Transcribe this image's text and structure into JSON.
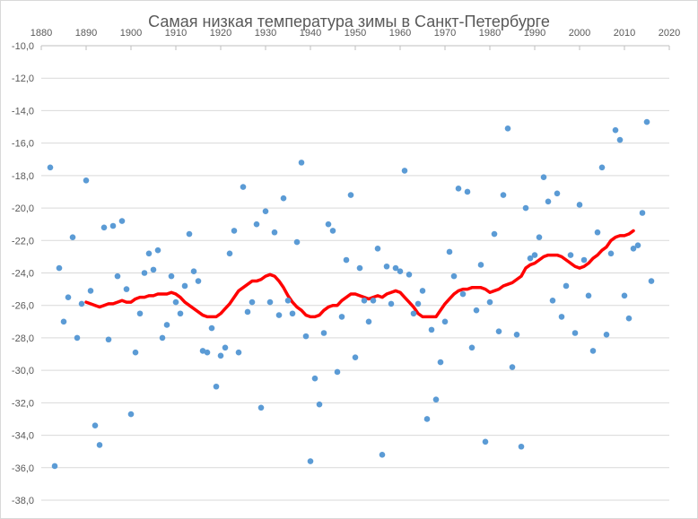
{
  "chart_data": {
    "type": "scatter",
    "title": "Самая низкая температура зимы в Санкт-Петербурге",
    "xlabel": "",
    "ylabel": "",
    "xlim": [
      1880,
      2020
    ],
    "ylim": [
      -38,
      -10
    ],
    "x_ticks": [
      1880,
      1890,
      1900,
      1910,
      1920,
      1930,
      1940,
      1950,
      1960,
      1970,
      1980,
      1990,
      2000,
      2010,
      2020
    ],
    "y_ticks": [
      -10,
      -12,
      -14,
      -16,
      -18,
      -20,
      -22,
      -24,
      -26,
      -28,
      -30,
      -32,
      -34,
      -36,
      -38
    ],
    "y_tick_labels": [
      "-10,0",
      "-12,0",
      "-14,0",
      "-16,0",
      "-18,0",
      "-20,0",
      "-22,0",
      "-24,0",
      "-26,0",
      "-28,0",
      "-30,0",
      "-32,0",
      "-34,0",
      "-36,0",
      "-38,0"
    ],
    "grid": "horizontal",
    "x_axis_position": "top",
    "colors": {
      "points": "#5b9bd5",
      "trend": "#ff0000",
      "grid": "#d9d9d9",
      "text": "#595959"
    },
    "series": [
      {
        "type": "scatter",
        "points": [
          [
            1882,
            -17.5
          ],
          [
            1883,
            -35.9
          ],
          [
            1884,
            -23.7
          ],
          [
            1885,
            -27.0
          ],
          [
            1886,
            -25.5
          ],
          [
            1887,
            -21.8
          ],
          [
            1888,
            -28.0
          ],
          [
            1889,
            -25.9
          ],
          [
            1890,
            -18.3
          ],
          [
            1891,
            -25.1
          ],
          [
            1892,
            -33.4
          ],
          [
            1893,
            -34.6
          ],
          [
            1894,
            -21.2
          ],
          [
            1895,
            -28.1
          ],
          [
            1896,
            -21.1
          ],
          [
            1897,
            -24.2
          ],
          [
            1898,
            -20.8
          ],
          [
            1899,
            -25.0
          ],
          [
            1900,
            -32.7
          ],
          [
            1901,
            -28.9
          ],
          [
            1902,
            -26.5
          ],
          [
            1903,
            -24.0
          ],
          [
            1904,
            -22.8
          ],
          [
            1905,
            -23.8
          ],
          [
            1906,
            -22.6
          ],
          [
            1907,
            -28.0
          ],
          [
            1908,
            -27.2
          ],
          [
            1909,
            -24.2
          ],
          [
            1910,
            -25.8
          ],
          [
            1911,
            -26.5
          ],
          [
            1912,
            -24.8
          ],
          [
            1913,
            -21.6
          ],
          [
            1914,
            -23.9
          ],
          [
            1915,
            -24.5
          ],
          [
            1916,
            -28.8
          ],
          [
            1917,
            -28.9
          ],
          [
            1918,
            -27.4
          ],
          [
            1919,
            -31.0
          ],
          [
            1920,
            -29.1
          ],
          [
            1921,
            -28.6
          ],
          [
            1922,
            -22.8
          ],
          [
            1923,
            -21.4
          ],
          [
            1924,
            -28.9
          ],
          [
            1925,
            -18.7
          ],
          [
            1926,
            -26.4
          ],
          [
            1927,
            -25.8
          ],
          [
            1928,
            -21.0
          ],
          [
            1929,
            -32.3
          ],
          [
            1930,
            -20.2
          ],
          [
            1931,
            -25.8
          ],
          [
            1932,
            -21.5
          ],
          [
            1933,
            -26.6
          ],
          [
            1934,
            -19.4
          ],
          [
            1935,
            -25.7
          ],
          [
            1936,
            -26.5
          ],
          [
            1937,
            -22.1
          ],
          [
            1938,
            -17.2
          ],
          [
            1939,
            -27.9
          ],
          [
            1940,
            -35.6
          ],
          [
            1941,
            -30.5
          ],
          [
            1942,
            -32.1
          ],
          [
            1943,
            -27.7
          ],
          [
            1944,
            -21.0
          ],
          [
            1945,
            -21.4
          ],
          [
            1946,
            -30.1
          ],
          [
            1947,
            -26.7
          ],
          [
            1948,
            -23.2
          ],
          [
            1949,
            -19.2
          ],
          [
            1950,
            -29.2
          ],
          [
            1951,
            -23.7
          ],
          [
            1952,
            -25.7
          ],
          [
            1953,
            -27.0
          ],
          [
            1954,
            -25.7
          ],
          [
            1955,
            -22.5
          ],
          [
            1956,
            -35.2
          ],
          [
            1957,
            -23.6
          ],
          [
            1958,
            -25.9
          ],
          [
            1959,
            -23.7
          ],
          [
            1960,
            -23.9
          ],
          [
            1961,
            -17.7
          ],
          [
            1962,
            -24.1
          ],
          [
            1963,
            -26.5
          ],
          [
            1964,
            -25.9
          ],
          [
            1965,
            -25.1
          ],
          [
            1966,
            -33.0
          ],
          [
            1967,
            -27.5
          ],
          [
            1968,
            -31.8
          ],
          [
            1969,
            -29.5
          ],
          [
            1970,
            -27.0
          ],
          [
            1971,
            -22.7
          ],
          [
            1972,
            -24.2
          ],
          [
            1973,
            -18.8
          ],
          [
            1974,
            -25.3
          ],
          [
            1975,
            -19.0
          ],
          [
            1976,
            -28.6
          ],
          [
            1977,
            -26.3
          ],
          [
            1978,
            -23.5
          ],
          [
            1979,
            -34.4
          ],
          [
            1980,
            -25.8
          ],
          [
            1981,
            -21.6
          ],
          [
            1982,
            -27.6
          ],
          [
            1983,
            -19.2
          ],
          [
            1984,
            -15.1
          ],
          [
            1985,
            -29.8
          ],
          [
            1986,
            -27.8
          ],
          [
            1987,
            -34.7
          ],
          [
            1988,
            -20.0
          ],
          [
            1989,
            -23.1
          ],
          [
            1990,
            -22.9
          ],
          [
            1991,
            -21.8
          ],
          [
            1992,
            -18.1
          ],
          [
            1993,
            -19.6
          ],
          [
            1994,
            -25.7
          ],
          [
            1995,
            -19.1
          ],
          [
            1996,
            -26.7
          ],
          [
            1997,
            -24.8
          ],
          [
            1998,
            -22.9
          ],
          [
            1999,
            -27.7
          ],
          [
            2000,
            -19.8
          ],
          [
            2001,
            -23.2
          ],
          [
            2002,
            -25.4
          ],
          [
            2003,
            -28.8
          ],
          [
            2004,
            -21.5
          ],
          [
            2005,
            -17.5
          ],
          [
            2006,
            -27.8
          ],
          [
            2007,
            -22.8
          ],
          [
            2008,
            -15.2
          ],
          [
            2009,
            -15.8
          ],
          [
            2010,
            -25.4
          ],
          [
            2011,
            -26.8
          ],
          [
            2012,
            -22.5
          ],
          [
            2013,
            -22.3
          ],
          [
            2014,
            -20.3
          ],
          [
            2015,
            -14.7
          ],
          [
            2016,
            -24.5
          ]
        ]
      },
      {
        "type": "line",
        "points": [
          [
            1890,
            -25.8
          ],
          [
            1891,
            -25.9
          ],
          [
            1892,
            -26.0
          ],
          [
            1893,
            -26.1
          ],
          [
            1894,
            -26.0
          ],
          [
            1895,
            -25.9
          ],
          [
            1896,
            -25.9
          ],
          [
            1897,
            -25.8
          ],
          [
            1898,
            -25.7
          ],
          [
            1899,
            -25.8
          ],
          [
            1900,
            -25.8
          ],
          [
            1901,
            -25.6
          ],
          [
            1902,
            -25.5
          ],
          [
            1903,
            -25.5
          ],
          [
            1904,
            -25.4
          ],
          [
            1905,
            -25.4
          ],
          [
            1906,
            -25.3
          ],
          [
            1907,
            -25.3
          ],
          [
            1908,
            -25.3
          ],
          [
            1909,
            -25.2
          ],
          [
            1910,
            -25.3
          ],
          [
            1911,
            -25.5
          ],
          [
            1912,
            -25.8
          ],
          [
            1913,
            -26.0
          ],
          [
            1914,
            -26.2
          ],
          [
            1915,
            -26.4
          ],
          [
            1916,
            -26.6
          ],
          [
            1917,
            -26.7
          ],
          [
            1918,
            -26.7
          ],
          [
            1919,
            -26.7
          ],
          [
            1920,
            -26.5
          ],
          [
            1921,
            -26.2
          ],
          [
            1922,
            -25.9
          ],
          [
            1923,
            -25.5
          ],
          [
            1924,
            -25.1
          ],
          [
            1925,
            -24.9
          ],
          [
            1926,
            -24.7
          ],
          [
            1927,
            -24.5
          ],
          [
            1928,
            -24.5
          ],
          [
            1929,
            -24.4
          ],
          [
            1930,
            -24.2
          ],
          [
            1931,
            -24.1
          ],
          [
            1932,
            -24.2
          ],
          [
            1933,
            -24.5
          ],
          [
            1934,
            -24.9
          ],
          [
            1935,
            -25.4
          ],
          [
            1936,
            -25.8
          ],
          [
            1937,
            -26.1
          ],
          [
            1938,
            -26.3
          ],
          [
            1939,
            -26.6
          ],
          [
            1940,
            -26.7
          ],
          [
            1941,
            -26.7
          ],
          [
            1942,
            -26.6
          ],
          [
            1943,
            -26.3
          ],
          [
            1944,
            -26.1
          ],
          [
            1945,
            -26.0
          ],
          [
            1946,
            -26.0
          ],
          [
            1947,
            -25.7
          ],
          [
            1948,
            -25.5
          ],
          [
            1949,
            -25.3
          ],
          [
            1950,
            -25.3
          ],
          [
            1951,
            -25.4
          ],
          [
            1952,
            -25.5
          ],
          [
            1953,
            -25.6
          ],
          [
            1954,
            -25.5
          ],
          [
            1955,
            -25.4
          ],
          [
            1956,
            -25.5
          ],
          [
            1957,
            -25.3
          ],
          [
            1958,
            -25.2
          ],
          [
            1959,
            -25.1
          ],
          [
            1960,
            -25.2
          ],
          [
            1961,
            -25.5
          ],
          [
            1962,
            -25.8
          ],
          [
            1963,
            -26.1
          ],
          [
            1964,
            -26.5
          ],
          [
            1965,
            -26.7
          ],
          [
            1966,
            -26.7
          ],
          [
            1967,
            -26.7
          ],
          [
            1968,
            -26.7
          ],
          [
            1969,
            -26.3
          ],
          [
            1970,
            -25.9
          ],
          [
            1971,
            -25.6
          ],
          [
            1972,
            -25.3
          ],
          [
            1973,
            -25.1
          ],
          [
            1974,
            -25.0
          ],
          [
            1975,
            -25.0
          ],
          [
            1976,
            -24.9
          ],
          [
            1977,
            -24.9
          ],
          [
            1978,
            -24.9
          ],
          [
            1979,
            -25.0
          ],
          [
            1980,
            -25.2
          ],
          [
            1981,
            -25.1
          ],
          [
            1982,
            -25.0
          ],
          [
            1983,
            -24.8
          ],
          [
            1984,
            -24.7
          ],
          [
            1985,
            -24.6
          ],
          [
            1986,
            -24.4
          ],
          [
            1987,
            -24.2
          ],
          [
            1988,
            -23.7
          ],
          [
            1989,
            -23.5
          ],
          [
            1990,
            -23.4
          ],
          [
            1991,
            -23.2
          ],
          [
            1992,
            -23.0
          ],
          [
            1993,
            -22.9
          ],
          [
            1994,
            -22.9
          ],
          [
            1995,
            -22.9
          ],
          [
            1996,
            -23.0
          ],
          [
            1997,
            -23.2
          ],
          [
            1998,
            -23.4
          ],
          [
            1999,
            -23.6
          ],
          [
            2000,
            -23.7
          ],
          [
            2001,
            -23.6
          ],
          [
            2002,
            -23.4
          ],
          [
            2003,
            -23.1
          ],
          [
            2004,
            -22.9
          ],
          [
            2005,
            -22.6
          ],
          [
            2006,
            -22.4
          ],
          [
            2007,
            -22.0
          ],
          [
            2008,
            -21.8
          ],
          [
            2009,
            -21.7
          ],
          [
            2010,
            -21.7
          ],
          [
            2011,
            -21.6
          ],
          [
            2012,
            -21.4
          ]
        ]
      }
    ]
  }
}
